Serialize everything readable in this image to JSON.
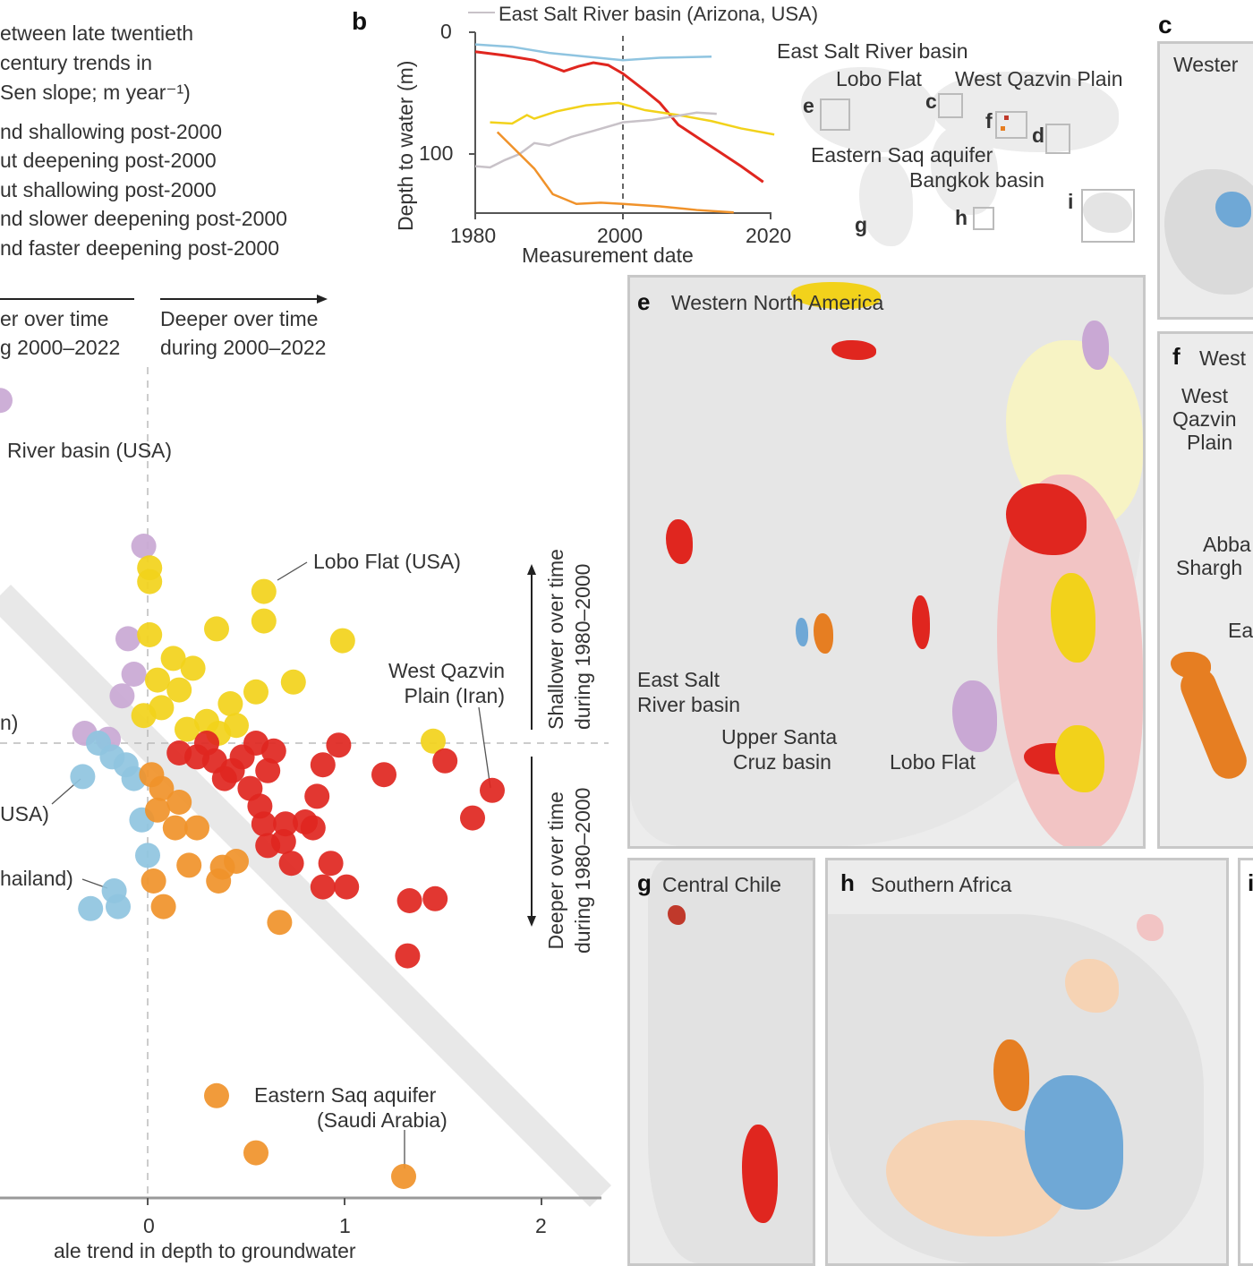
{
  "legend_a": {
    "title_lines": [
      "etween late twentieth",
      "century trends in",
      "Sen slope; m year⁻¹)"
    ],
    "entries": [
      "nd shallowing post-2000",
      "ut deepening post-2000",
      "ut shallowing post-2000",
      "nd slower deepening post-2000",
      "nd faster deepening post-2000"
    ]
  },
  "scatter_annot": {
    "left_arrow": [
      "er over time",
      "g 2000–2022"
    ],
    "right_arrow": [
      "Deeper over time",
      "during 2000–2022"
    ],
    "up_arrow": [
      "Shallower over time",
      "during 1980–2000"
    ],
    "down_arrow": [
      "Deeper over time",
      "during 1980–2000"
    ],
    "labels": {
      "esr": "River basin (USA)",
      "lobo": "Lobo Flat (USA)",
      "wq1": "West Qazvin",
      "wq2": "Plain (Iran)",
      "n": "n)",
      "usa": "USA)",
      "thai": "hailand)",
      "saq1": "Eastern Saq aquifer",
      "saq2": "(Saudi Arabia)"
    }
  },
  "chart_data": [
    {
      "type": "scatter",
      "xlabel": "ale trend in depth to groundwater",
      "xticks": [
        "0",
        "1",
        "2"
      ],
      "xlim": [
        -0.75,
        2.3
      ],
      "ylim_note": "inverted",
      "ylim": [
        -1.9,
        2.3
      ],
      "reference_lines": [
        "x=0",
        "y=0",
        "y=x"
      ],
      "groups": [
        {
          "legend": "nd shallowing post-2000",
          "color": "#c9a8d4",
          "points": [
            [
              -0.75,
              -1.74
            ],
            [
              -0.02,
              -1.0
            ],
            [
              -0.1,
              -0.53
            ],
            [
              -0.07,
              -0.35
            ],
            [
              -0.13,
              -0.24
            ],
            [
              -0.32,
              -0.05
            ],
            [
              -0.2,
              -0.02
            ]
          ]
        },
        {
          "legend": "ut deepening post-2000",
          "color": "#f2d21b",
          "points": [
            [
              0.01,
              -0.89
            ],
            [
              0.01,
              -0.82
            ],
            [
              0.59,
              -0.77
            ],
            [
              0.59,
              -0.62
            ],
            [
              0.35,
              -0.58
            ],
            [
              0.99,
              -0.52
            ],
            [
              0.01,
              -0.55
            ],
            [
              0.13,
              -0.43
            ],
            [
              0.23,
              -0.38
            ],
            [
              0.74,
              -0.31
            ],
            [
              0.55,
              -0.26
            ],
            [
              0.42,
              -0.2
            ],
            [
              0.3,
              -0.11
            ],
            [
              0.05,
              -0.32
            ],
            [
              0.07,
              -0.18
            ],
            [
              0.16,
              -0.27
            ],
            [
              0.45,
              -0.09
            ],
            [
              1.45,
              -0.01
            ],
            [
              -0.02,
              -0.14
            ],
            [
              0.2,
              -0.07
            ],
            [
              0.36,
              -0.05
            ]
          ]
        },
        {
          "legend": "ut shallowing post-2000",
          "color": "#8fc4e0",
          "points": [
            [
              -0.33,
              0.17
            ],
            [
              -0.03,
              0.39
            ],
            [
              0.0,
              0.57
            ],
            [
              -0.17,
              0.75
            ],
            [
              -0.15,
              0.83
            ],
            [
              -0.29,
              0.84
            ],
            [
              -0.25,
              0.0
            ],
            [
              -0.18,
              0.07
            ],
            [
              -0.11,
              0.11
            ],
            [
              -0.07,
              0.18
            ]
          ]
        },
        {
          "legend": "nd slower deepening post-2000",
          "color": "#f0922a",
          "points": [
            [
              0.35,
              1.79
            ],
            [
              0.55,
              2.08
            ],
            [
              1.3,
              2.2
            ],
            [
              0.67,
              0.91
            ],
            [
              0.08,
              0.83
            ],
            [
              0.03,
              0.7
            ],
            [
              0.21,
              0.62
            ],
            [
              0.38,
              0.63
            ],
            [
              0.45,
              0.6
            ],
            [
              0.36,
              0.7
            ],
            [
              0.14,
              0.43
            ],
            [
              0.25,
              0.43
            ],
            [
              0.05,
              0.34
            ],
            [
              0.07,
              0.23
            ],
            [
              0.16,
              0.3
            ],
            [
              0.02,
              0.16
            ]
          ]
        },
        {
          "legend": "nd faster deepening post-2000",
          "color": "#e0261f",
          "points": [
            [
              0.97,
              0.01
            ],
            [
              1.2,
              0.16
            ],
            [
              1.51,
              0.09
            ],
            [
              1.75,
              0.24
            ],
            [
              1.65,
              0.38
            ],
            [
              0.89,
              0.11
            ],
            [
              0.86,
              0.27
            ],
            [
              0.8,
              0.4
            ],
            [
              0.7,
              0.41
            ],
            [
              0.59,
              0.41
            ],
            [
              0.61,
              0.52
            ],
            [
              0.69,
              0.5
            ],
            [
              0.84,
              0.43
            ],
            [
              0.61,
              0.14
            ],
            [
              0.52,
              0.23
            ],
            [
              0.43,
              0.14
            ],
            [
              0.34,
              0.09
            ],
            [
              0.25,
              0.07
            ],
            [
              0.16,
              0.05
            ],
            [
              0.48,
              0.07
            ],
            [
              0.64,
              0.04
            ],
            [
              0.39,
              0.18
            ],
            [
              0.57,
              0.32
            ],
            [
              0.73,
              0.61
            ],
            [
              0.93,
              0.61
            ],
            [
              0.89,
              0.73
            ],
            [
              1.01,
              0.73
            ],
            [
              1.33,
              0.8
            ],
            [
              1.46,
              0.79
            ],
            [
              1.32,
              1.08
            ],
            [
              0.3,
              0.0
            ],
            [
              0.55,
              0.0
            ]
          ]
        }
      ]
    },
    {
      "type": "line",
      "panel": "b",
      "xlabel": "Measurement date",
      "ylabel": "Depth to water (m)",
      "xticks": [
        "1980",
        "2000",
        "2020"
      ],
      "yticks": [
        "0",
        "100"
      ],
      "xlim": [
        1980,
        2020
      ],
      "ylim": [
        0,
        148
      ],
      "y_inverted": true,
      "vline": 2000,
      "legend_visible": "East Salt River basin (Arizona, USA)",
      "series": [
        {
          "color": "#8fc4e0",
          "points": [
            [
              1980,
              10
            ],
            [
              1985,
              12
            ],
            [
              1990,
              17
            ],
            [
              1995,
              20
            ],
            [
              2000,
              23
            ],
            [
              2005,
              21
            ],
            [
              2012,
              20
            ]
          ]
        },
        {
          "color": "#e0261f",
          "points": [
            [
              1980,
              16
            ],
            [
              1984,
              19
            ],
            [
              1988,
              23
            ],
            [
              1992,
              32
            ],
            [
              1994,
              28
            ],
            [
              1996,
              25
            ],
            [
              1998,
              27
            ],
            [
              2000,
              34
            ],
            [
              2003,
              48
            ],
            [
              2005,
              58
            ],
            [
              2007.5,
              76
            ],
            [
              2010,
              86
            ],
            [
              2013,
              98
            ],
            [
              2016,
              110
            ],
            [
              2019,
              123
            ]
          ]
        },
        {
          "color": "#f2d21b",
          "points": [
            [
              1982,
              74
            ],
            [
              1985,
              75
            ],
            [
              1987,
              68
            ],
            [
              1988,
              71
            ],
            [
              1991,
              65
            ],
            [
              1995,
              60
            ],
            [
              1999.4,
              58
            ],
            [
              2003,
              64
            ],
            [
              2007.5,
              68
            ],
            [
              2012,
              73
            ],
            [
              2016,
              79
            ],
            [
              2020.5,
              84
            ]
          ]
        },
        {
          "name": "East Salt River basin (Arizona, USA)",
          "color": "#c8c2c8",
          "points": [
            [
              1980,
              110
            ],
            [
              1982,
              111
            ],
            [
              1984,
              105
            ],
            [
              1986,
              100
            ],
            [
              1988,
              91
            ],
            [
              1990,
              93
            ],
            [
              1993,
              86
            ],
            [
              1996,
              81
            ],
            [
              2000,
              74
            ],
            [
              2004,
              72
            ],
            [
              2008,
              68
            ],
            [
              2010,
              66
            ],
            [
              2012.7,
              67
            ]
          ]
        },
        {
          "color": "#f0922a",
          "points": [
            [
              1983,
              82
            ],
            [
              1986,
              100
            ],
            [
              1988,
              112
            ],
            [
              1990.5,
              133
            ],
            [
              1993.7,
              141
            ],
            [
              1997,
              140
            ],
            [
              2000,
              141
            ],
            [
              2005,
              143
            ],
            [
              2010,
              146
            ],
            [
              2015,
              148
            ]
          ]
        }
      ]
    }
  ],
  "inset_world": {
    "labels": [
      "East Salt River basin",
      "Lobo Flat",
      "West Qazvin Plain",
      "Eastern Saq aquifer",
      "Bangkok basin"
    ],
    "letters": [
      "e",
      "c",
      "f",
      "d",
      "g",
      "h",
      "i"
    ]
  },
  "panels": {
    "b": "b",
    "c": "c",
    "c_title": "Wester",
    "e": "e",
    "e_title": "Western North America",
    "e_labels": [
      "East Salt",
      "River basin",
      "Upper Santa",
      "Cruz basin",
      "Lobo Flat"
    ],
    "f": "f",
    "f_title": "West",
    "f_labels": [
      "West",
      "Qazvin",
      "Plain",
      "Abba",
      "Shargh",
      "Ea"
    ],
    "g": "g",
    "g_title": "Central Chile",
    "h": "h",
    "h_title": "Southern Africa",
    "i": "i"
  }
}
